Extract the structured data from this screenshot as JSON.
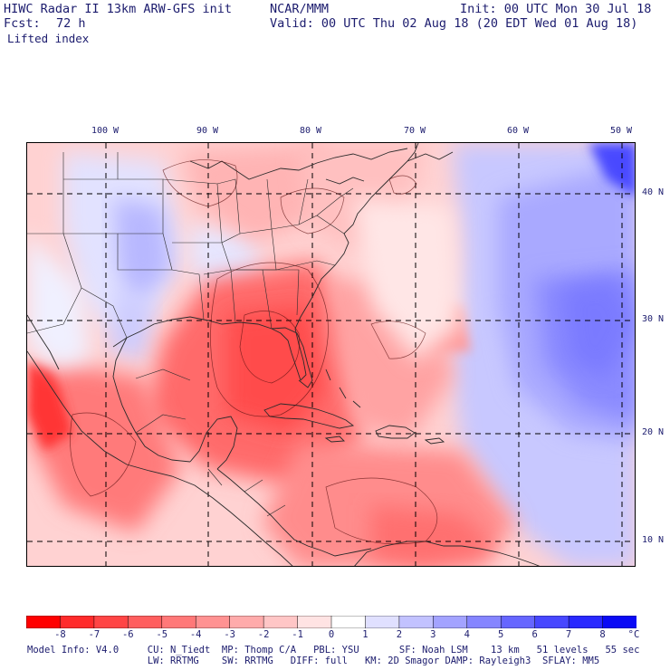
{
  "header": {
    "title": "HIWC Radar II 13km ARW-GFS init",
    "org": "NCAR/MMM",
    "init": "Init: 00 UTC Mon 30 Jul 18",
    "fcst_label": "Fcst:",
    "fcst_value": "72 h",
    "valid": "Valid: 00 UTC Thu 02 Aug 18 (20 EDT Wed 01 Aug 18)",
    "field": "Lifted index"
  },
  "map": {
    "lon_labels": [
      "100 W",
      "90 W",
      "80 W",
      "70 W",
      "60 W",
      "50 W"
    ],
    "lat_labels": [
      "40 N",
      "30 N",
      "20 N",
      "10 N"
    ]
  },
  "colorbar": {
    "labels": [
      "-8",
      "-7",
      "-6",
      "-5",
      "-4",
      "-3",
      "-2",
      "-1",
      "0",
      "1",
      "2",
      "3",
      "4",
      "5",
      "6",
      "7",
      "8"
    ],
    "unit": "°C",
    "colors": [
      "#ff0000",
      "#ff2b2b",
      "#ff4545",
      "#ff5e5e",
      "#ff7878",
      "#ff9292",
      "#ffabab",
      "#ffc6c6",
      "#ffe3e3",
      "#ffffff",
      "#e0e0ff",
      "#c2c2ff",
      "#a3a3ff",
      "#8585ff",
      "#6666ff",
      "#4747ff",
      "#2929ff",
      "#0a0af5"
    ]
  },
  "footer": {
    "line1": "Model Info: V4.0     CU: N_Tiedt  MP: Thomp C/A   PBL: YSU       SF: Noah LSM    13 km   51 levels   55 sec",
    "line2": "                     LW: RRTMG    SW: RRTMG   DIFF: full   KM: 2D Smagor DAMP: Rayleigh3  SFLAY: MM5"
  }
}
